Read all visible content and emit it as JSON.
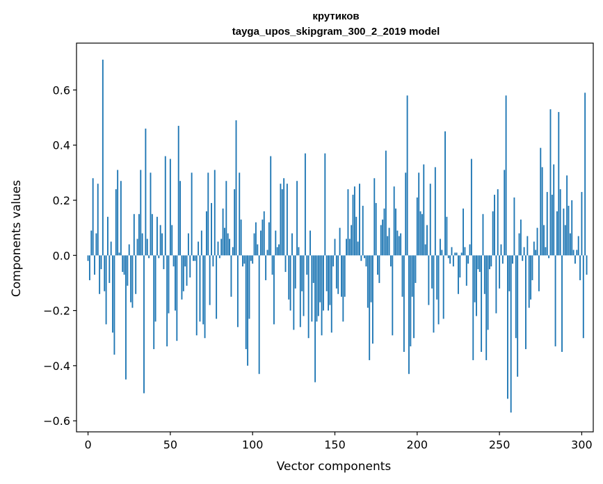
{
  "chart_data": {
    "type": "bar",
    "title": "крутиков",
    "subtitle": "tayga_upos_skipgram_300_2_2019 model",
    "xlabel": "Vector components",
    "ylabel": "Components values",
    "xlim": [
      -7,
      307
    ],
    "ylim": [
      -0.64,
      0.77
    ],
    "xticks": [
      0,
      50,
      100,
      150,
      200,
      250,
      300
    ],
    "yticks": [
      -0.6,
      -0.4,
      -0.2,
      0.0,
      0.2,
      0.4,
      0.6
    ],
    "xtick_labels": [
      "0",
      "50",
      "100",
      "150",
      "200",
      "250",
      "300"
    ],
    "ytick_labels": [
      "−0.6",
      "−0.4",
      "−0.2",
      "0.0",
      "0.2",
      "0.4",
      "0.6"
    ],
    "bar_color": "#1f77b4",
    "grid": false,
    "values": [
      -0.02,
      -0.09,
      0.09,
      0.28,
      -0.07,
      0.08,
      0.26,
      -0.14,
      -0.05,
      0.71,
      -0.13,
      -0.25,
      0.14,
      -0.1,
      0.05,
      -0.28,
      -0.36,
      0.24,
      0.31,
      0.01,
      0.27,
      -0.06,
      -0.07,
      -0.45,
      -0.11,
      0.04,
      -0.17,
      -0.19,
      0.15,
      -0.14,
      0.06,
      0.15,
      0.31,
      0.08,
      -0.5,
      0.46,
      0.06,
      -0.01,
      0.3,
      0.15,
      -0.34,
      -0.24,
      0.14,
      -0.01,
      0.11,
      0.08,
      -0.05,
      0.36,
      -0.33,
      -0.21,
      0.35,
      0.11,
      -0.04,
      -0.2,
      -0.31,
      0.47,
      0.27,
      -0.16,
      -0.13,
      -0.04,
      -0.11,
      0.08,
      -0.08,
      0.3,
      -0.02,
      -0.02,
      -0.29,
      0.05,
      -0.24,
      0.09,
      -0.25,
      -0.3,
      0.16,
      0.3,
      -0.18,
      0.19,
      -0.04,
      0.31,
      -0.23,
      0.05,
      -0.01,
      0.06,
      0.17,
      0.1,
      0.27,
      0.08,
      0.06,
      -0.15,
      0.03,
      0.24,
      0.49,
      -0.26,
      0.3,
      0.13,
      -0.04,
      -0.03,
      -0.34,
      -0.4,
      -0.23,
      -0.02,
      -0.03,
      0.08,
      0.12,
      0.04,
      -0.43,
      0.09,
      0.13,
      0.16,
      -0.09,
      0.02,
      0.12,
      0.36,
      -0.07,
      -0.25,
      0.09,
      0.03,
      0.04,
      0.26,
      0.24,
      0.28,
      -0.06,
      0.26,
      -0.16,
      -0.2,
      0.08,
      -0.27,
      -0.12,
      0.27,
      0.03,
      -0.26,
      -0.13,
      -0.22,
      0.37,
      -0.07,
      -0.3,
      0.09,
      -0.24,
      -0.1,
      -0.46,
      -0.24,
      -0.22,
      -0.17,
      -0.29,
      -0.2,
      0.37,
      -0.13,
      -0.2,
      -0.18,
      -0.28,
      -0.04,
      0.06,
      -0.12,
      -0.14,
      0.1,
      -0.15,
      -0.24,
      -0.15,
      0.06,
      0.24,
      0.06,
      0.11,
      0.22,
      0.25,
      0.14,
      0.05,
      0.26,
      -0.02,
      0.18,
      -0.01,
      -0.04,
      -0.19,
      -0.38,
      -0.17,
      -0.32,
      0.28,
      0.19,
      -0.07,
      -0.1,
      0.11,
      0.13,
      0.17,
      0.38,
      0.07,
      0.1,
      -0.04,
      -0.29,
      0.25,
      0.17,
      0.09,
      0.07,
      0.08,
      -0.15,
      -0.35,
      0.3,
      0.58,
      -0.43,
      -0.33,
      -0.15,
      -0.3,
      -0.1,
      0.21,
      0.3,
      0.16,
      0.15,
      0.33,
      0.04,
      0.11,
      -0.18,
      0.26,
      -0.12,
      -0.28,
      0.32,
      -0.16,
      -0.25,
      0.06,
      0.02,
      -0.23,
      0.45,
      0.14,
      -0.01,
      -0.03,
      0.03,
      -0.04,
      0.01,
      0.01,
      -0.14,
      -0.08,
      0.01,
      0.17,
      0.03,
      -0.11,
      -0.03,
      0.04,
      0.35,
      -0.38,
      -0.17,
      -0.22,
      -0.05,
      -0.06,
      -0.35,
      0.15,
      -0.14,
      -0.38,
      -0.27,
      -0.05,
      -0.04,
      0.16,
      0.22,
      -0.21,
      0.24,
      -0.12,
      0.04,
      -0.03,
      0.31,
      0.58,
      -0.52,
      -0.13,
      -0.57,
      -0.03,
      0.21,
      -0.3,
      -0.44,
      0.08,
      0.13,
      -0.02,
      0.03,
      -0.34,
      0.07,
      -0.19,
      -0.16,
      -0.09,
      0.05,
      0.02,
      0.1,
      -0.13,
      0.39,
      0.32,
      0.11,
      0.03,
      0.23,
      -0.01,
      0.53,
      0.22,
      0.33,
      -0.33,
      0.16,
      0.52,
      0.24,
      -0.35,
      0.17,
      0.11,
      0.29,
      0.18,
      0.08,
      0.2,
      0.02,
      -0.03,
      0.02,
      0.07,
      -0.09,
      0.23,
      -0.3,
      0.59,
      -0.07
    ]
  }
}
